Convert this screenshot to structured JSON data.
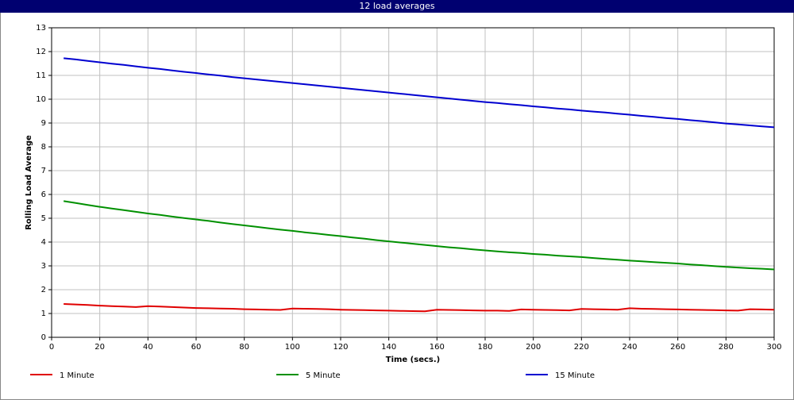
{
  "chart_data": {
    "type": "line",
    "title": "12 load averages",
    "x_label": "Time (secs.)",
    "y_label": "Rolling Load Average",
    "x": [
      5,
      10,
      15,
      20,
      25,
      30,
      35,
      40,
      45,
      50,
      55,
      60,
      65,
      70,
      75,
      80,
      85,
      90,
      95,
      100,
      105,
      110,
      115,
      120,
      125,
      130,
      135,
      140,
      145,
      150,
      155,
      160,
      165,
      170,
      175,
      180,
      185,
      190,
      195,
      200,
      205,
      210,
      215,
      220,
      225,
      230,
      235,
      240,
      245,
      250,
      255,
      260,
      265,
      270,
      275,
      280,
      285,
      290,
      295,
      300
    ],
    "series": [
      {
        "name": "1 Minute",
        "color": "#e00000",
        "values": [
          1.4,
          1.38,
          1.36,
          1.33,
          1.31,
          1.29,
          1.27,
          1.31,
          1.29,
          1.27,
          1.25,
          1.23,
          1.22,
          1.21,
          1.2,
          1.18,
          1.17,
          1.16,
          1.15,
          1.21,
          1.2,
          1.19,
          1.18,
          1.16,
          1.15,
          1.14,
          1.13,
          1.12,
          1.11,
          1.1,
          1.09,
          1.16,
          1.15,
          1.14,
          1.13,
          1.12,
          1.12,
          1.11,
          1.17,
          1.16,
          1.15,
          1.14,
          1.13,
          1.19,
          1.18,
          1.17,
          1.16,
          1.22,
          1.2,
          1.19,
          1.18,
          1.17,
          1.16,
          1.15,
          1.14,
          1.13,
          1.12,
          1.18,
          1.17,
          1.16
        ]
      },
      {
        "name": "5 Minute",
        "color": "#009000",
        "values": [
          5.72,
          5.64,
          5.56,
          5.48,
          5.41,
          5.34,
          5.27,
          5.2,
          5.14,
          5.07,
          5.01,
          4.95,
          4.89,
          4.82,
          4.76,
          4.7,
          4.64,
          4.58,
          4.52,
          4.47,
          4.41,
          4.36,
          4.3,
          4.25,
          4.19,
          4.14,
          4.08,
          4.03,
          3.98,
          3.93,
          3.88,
          3.83,
          3.78,
          3.74,
          3.69,
          3.65,
          3.61,
          3.57,
          3.54,
          3.5,
          3.47,
          3.43,
          3.4,
          3.37,
          3.33,
          3.29,
          3.26,
          3.22,
          3.19,
          3.16,
          3.13,
          3.1,
          3.06,
          3.03,
          2.99,
          2.96,
          2.93,
          2.9,
          2.88,
          2.85
        ]
      },
      {
        "name": "15 Minute",
        "color": "#0000d0",
        "values": [
          11.72,
          11.67,
          11.61,
          11.55,
          11.49,
          11.44,
          11.38,
          11.32,
          11.27,
          11.21,
          11.15,
          11.1,
          11.04,
          10.99,
          10.93,
          10.88,
          10.83,
          10.78,
          10.73,
          10.68,
          10.63,
          10.58,
          10.53,
          10.48,
          10.43,
          10.38,
          10.33,
          10.28,
          10.23,
          10.18,
          10.13,
          10.08,
          10.03,
          9.98,
          9.93,
          9.88,
          9.84,
          9.79,
          9.75,
          9.7,
          9.66,
          9.61,
          9.57,
          9.52,
          9.48,
          9.44,
          9.39,
          9.35,
          9.3,
          9.26,
          9.21,
          9.17,
          9.12,
          9.08,
          9.03,
          8.98,
          8.94,
          8.9,
          8.86,
          8.82
        ]
      }
    ],
    "xlim": [
      0,
      300
    ],
    "xticks": [
      0,
      20,
      40,
      60,
      80,
      100,
      120,
      140,
      160,
      180,
      200,
      220,
      240,
      260,
      280,
      300
    ],
    "ylim": [
      0,
      13
    ],
    "yticks": [
      0,
      1,
      2,
      3,
      4,
      5,
      6,
      7,
      8,
      9,
      10,
      11,
      12,
      13
    ],
    "grid": true
  }
}
